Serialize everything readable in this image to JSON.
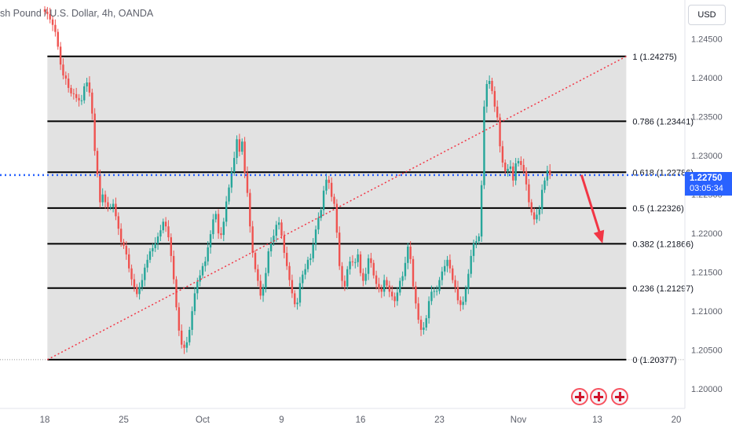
{
  "header": {
    "title": "sh Pound / U.S. Dollar, 4h, OANDA",
    "currency_button": "USD"
  },
  "price_badge": {
    "price": "1.22750",
    "countdown": "03:05:34"
  },
  "colors": {
    "up": "#26a69a",
    "down": "#ef5350",
    "fib_zone": "#e2e2e2",
    "fib_line": "#000000",
    "trendline": "#f23645",
    "price_line": "#2962ff",
    "arrow": "#f23645"
  },
  "chart_data": {
    "type": "candlestick",
    "instrument": "GBP/USD",
    "timeframe": "4h",
    "y_range": [
      1.1975,
      1.25
    ],
    "y_ticks": [
      "1.24500",
      "1.24000",
      "1.23500",
      "1.23000",
      "1.22500",
      "1.22000",
      "1.21500",
      "1.21000",
      "1.20500",
      "1.20000"
    ],
    "x_ticks": [
      {
        "label": "18",
        "idx": 0
      },
      {
        "label": "25",
        "idx": 30
      },
      {
        "label": "Oct",
        "idx": 60
      },
      {
        "label": "9",
        "idx": 90
      },
      {
        "label": "16",
        "idx": 120
      },
      {
        "label": "23",
        "idx": 150
      },
      {
        "label": "Nov",
        "idx": 180
      },
      {
        "label": "13",
        "idx": 210
      },
      {
        "label": "20",
        "idx": 240
      }
    ],
    "current_price": 1.2275,
    "fib_levels": [
      {
        "ratio": 1,
        "price": 1.24275,
        "label": "1 (1.24275)"
      },
      {
        "ratio": 0.786,
        "price": 1.23441,
        "label": "0.786 (1.23441)"
      },
      {
        "ratio": 0.618,
        "price": 1.22786,
        "label": "0.618 (1.22786)"
      },
      {
        "ratio": 0.5,
        "price": 1.22326,
        "label": "0.5 (1.22326)"
      },
      {
        "ratio": 0.382,
        "price": 1.21866,
        "label": "0.382 (1.21866)"
      },
      {
        "ratio": 0.236,
        "price": 1.21297,
        "label": "0.236 (1.21297)"
      },
      {
        "ratio": 0,
        "price": 1.20377,
        "label": "0 (1.20377)"
      }
    ],
    "fib_x_range_idx": [
      1,
      221
    ],
    "trendline": {
      "from": {
        "idx": 1,
        "price": 1.20377
      },
      "to": {
        "idx": 221,
        "price": 1.24275
      }
    },
    "arrow": {
      "from": {
        "idx": 204,
        "price": 1.2275
      },
      "to": {
        "idx": 212,
        "price": 1.2187
      }
    },
    "close_series": [
      1.2485,
      1.2482,
      1.2475,
      1.2468,
      1.2459,
      1.244,
      1.2417,
      1.2403,
      1.2399,
      1.2387,
      1.238,
      1.2379,
      1.2374,
      1.2371,
      1.2371,
      1.2389,
      1.2394,
      1.2381,
      1.2354,
      1.2306,
      1.2276,
      1.224,
      1.225,
      1.224,
      1.2234,
      1.2234,
      1.2238,
      1.2222,
      1.2206,
      1.2189,
      1.2184,
      1.2173,
      1.2155,
      1.2141,
      1.2131,
      1.2122,
      1.2131,
      1.214,
      1.2156,
      1.2166,
      1.2177,
      1.2181,
      1.2187,
      1.2196,
      1.2204,
      1.2215,
      1.2209,
      1.2195,
      1.2171,
      1.2141,
      1.2105,
      1.2075,
      1.2057,
      1.2053,
      1.206,
      1.2076,
      1.21,
      1.2123,
      1.2138,
      1.2146,
      1.2158,
      1.2164,
      1.2182,
      1.2199,
      1.2218,
      1.2225,
      1.22,
      1.2198,
      1.2215,
      1.2241,
      1.2259,
      1.2279,
      1.2297,
      1.2321,
      1.2305,
      1.2318,
      1.2278,
      1.2252,
      1.2209,
      1.2175,
      1.2154,
      1.2139,
      1.212,
      1.213,
      1.2149,
      1.2177,
      1.2189,
      1.2197,
      1.2211,
      1.2214,
      1.2197,
      1.2175,
      1.2158,
      1.214,
      1.2123,
      1.2109,
      1.2111,
      1.2136,
      1.2147,
      1.2154,
      1.2166,
      1.2168,
      1.2186,
      1.2205,
      1.222,
      1.223,
      1.2255,
      1.2269,
      1.2265,
      1.2247,
      1.2238,
      1.2201,
      1.2158,
      1.2139,
      1.2132,
      1.2154,
      1.2164,
      1.2163,
      1.2163,
      1.2173,
      1.2149,
      1.2139,
      1.2148,
      1.2168,
      1.2162,
      1.2146,
      1.2135,
      1.2129,
      1.2125,
      1.214,
      1.2133,
      1.2125,
      1.2119,
      1.2113,
      1.2124,
      1.2139,
      1.2145,
      1.2162,
      1.2183,
      1.2167,
      1.2132,
      1.211,
      1.2089,
      1.2076,
      1.2079,
      1.2091,
      1.2113,
      1.2125,
      1.2126,
      1.2126,
      1.214,
      1.2151,
      1.2158,
      1.2166,
      1.2155,
      1.214,
      1.2131,
      1.2114,
      1.2108,
      1.2112,
      1.2129,
      1.2148,
      1.2171,
      1.2187,
      1.219,
      1.2196,
      1.2262,
      1.2363,
      1.2392,
      1.2396,
      1.2383,
      1.2363,
      1.2349,
      1.2312,
      1.2291,
      1.228,
      1.2283,
      1.2286,
      1.2268,
      1.229,
      1.2293,
      1.2288,
      1.228,
      1.2263,
      1.224,
      1.2227,
      1.2218,
      1.2224,
      1.2231,
      1.2256,
      1.2268,
      1.2281,
      1.2275
    ]
  }
}
